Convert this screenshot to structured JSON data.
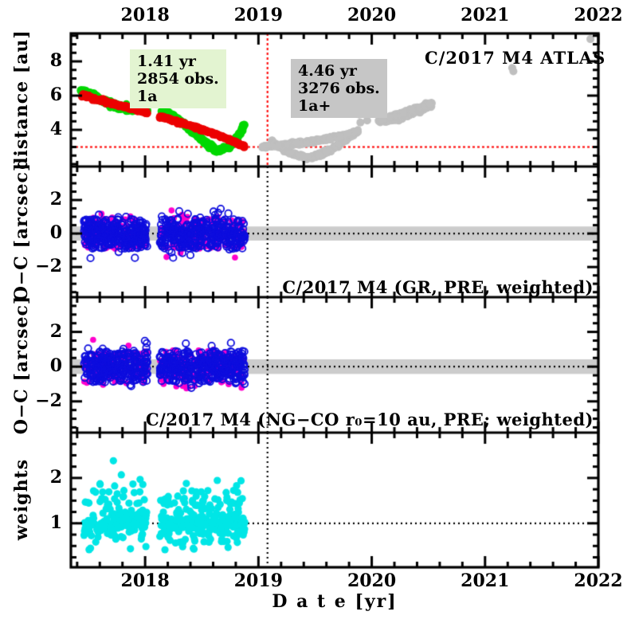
{
  "figure_title": "C/2017 M4 ATLAS",
  "chart_data": {
    "type": "scatter",
    "x": {
      "label": "D a t e [yr]",
      "min": 2017.345,
      "max": 2022.0,
      "major_ticks": [
        2018,
        2019,
        2020,
        2021,
        2022
      ],
      "tick_labels": [
        "2018",
        "2019",
        "2020",
        "2021",
        "2022"
      ],
      "minor_step": 0.2
    },
    "vline_x": 2019.08,
    "panels": [
      {
        "name": "distance",
        "ylabel": "distance [au]",
        "ylim": [
          1.86,
          9.63
        ],
        "yticks": {
          "major": [
            4,
            6,
            8
          ],
          "labels": [
            "4",
            "6",
            "8"
          ],
          "minor_step": 0.5
        },
        "hline": {
          "y": 3.0,
          "color": "#ff1212",
          "dash": [
            3,
            3
          ]
        },
        "vline": {
          "x": 2019.08,
          "color": "#ff1212",
          "dash": [
            3,
            3
          ]
        },
        "title": "C/2017 M4 ATLAS",
        "annotations": {
          "prefit": {
            "lines": [
              "1.41 yr",
              "2854 obs.",
              "1a"
            ],
            "bg": "#e3f4d1"
          },
          "postfit": {
            "lines": [
              "4.46 yr",
              "3276 obs.",
              "1a+"
            ],
            "bg": "#c6c6c6"
          }
        },
        "series": [
          {
            "id": "geocentric-distance-observed",
            "kind": "curve-dots",
            "color": "#00d800",
            "r": 5.0,
            "n": 430,
            "jitter": 0.07,
            "seed": 5,
            "gaps": [
              [
                2018.02,
                2018.13
              ]
            ],
            "points": [
              [
                2017.43,
                6.35
              ],
              [
                2017.55,
                5.95
              ],
              [
                2017.7,
                5.45
              ],
              [
                2017.85,
                5.24
              ],
              [
                2018.0,
                5.18
              ],
              [
                2018.12,
                5.12
              ],
              [
                2018.25,
                4.78
              ],
              [
                2018.4,
                4.05
              ],
              [
                2018.55,
                3.15
              ],
              [
                2018.64,
                2.78
              ],
              [
                2018.74,
                3.0
              ],
              [
                2018.82,
                3.62
              ],
              [
                2018.88,
                4.3
              ]
            ]
          },
          {
            "id": "heliocentric-distance-observed",
            "kind": "curve-dots",
            "color": "#ec0000",
            "r": 4.6,
            "n": 470,
            "jitter": 0.04,
            "seed": 6,
            "gaps": [
              [
                2018.02,
                2018.13
              ]
            ],
            "points": [
              [
                2017.43,
                6.05
              ],
              [
                2017.7,
                5.55
              ],
              [
                2018.0,
                5.05
              ],
              [
                2018.35,
                4.35
              ],
              [
                2018.6,
                3.8
              ],
              [
                2018.88,
                3.05
              ]
            ]
          },
          {
            "id": "geocentric-distance-recovery",
            "kind": "curve-dots",
            "color": "#bfbfbf",
            "r": 4.6,
            "n": 270,
            "jitter": 0.05,
            "seed": 7,
            "gaps": [],
            "points": [
              [
                2019.12,
                3.3
              ],
              [
                2019.3,
                2.6
              ],
              [
                2019.45,
                2.35
              ],
              [
                2019.6,
                2.7
              ],
              [
                2019.75,
                3.3
              ],
              [
                2019.88,
                3.95
              ]
            ]
          },
          {
            "id": "heliocentric-distance-recovery",
            "kind": "curve-dots",
            "color": "#bfbfbf",
            "r": 4.6,
            "n": 270,
            "jitter": 0.05,
            "seed": 8,
            "gaps": [],
            "points": [
              [
                2019.03,
                3.0
              ],
              [
                2019.2,
                3.12
              ],
              [
                2019.45,
                3.3
              ],
              [
                2019.7,
                3.6
              ],
              [
                2019.88,
                3.88
              ]
            ]
          },
          {
            "id": "distance-2020-track-a",
            "kind": "curve-dots",
            "color": "#bfbfbf",
            "r": 4.6,
            "n": 170,
            "jitter": 0.06,
            "seed": 9,
            "gaps": [],
            "points": [
              [
                2020.06,
                4.42
              ],
              [
                2020.25,
                4.72
              ],
              [
                2020.42,
                5.15
              ],
              [
                2020.53,
                5.45
              ]
            ]
          },
          {
            "id": "distance-2020-track-b",
            "kind": "curve-dots",
            "color": "#bfbfbf",
            "r": 4.6,
            "n": 150,
            "jitter": 0.05,
            "seed": 10,
            "gaps": [],
            "points": [
              [
                2020.06,
                4.58
              ],
              [
                2020.25,
                4.92
              ],
              [
                2020.42,
                5.32
              ],
              [
                2020.53,
                5.55
              ]
            ]
          },
          {
            "id": "distance-sparse-points",
            "kind": "points",
            "color": "#bfbfbf",
            "r": 5.0,
            "points": [
              [
                2019.89,
                4.9
              ],
              [
                2019.95,
                4.87
              ],
              [
                2019.9,
                4.43
              ],
              [
                2019.96,
                4.55
              ],
              [
                2021.24,
                7.62
              ],
              [
                2021.25,
                7.42
              ],
              [
                2021.93,
                9.3
              ]
            ]
          }
        ]
      },
      {
        "name": "oc-gr",
        "ylabel": "O−C [arcsec]",
        "ylim": [
          -3.8,
          4.0
        ],
        "yticks": {
          "major": [
            -2,
            0,
            2
          ],
          "labels": [
            "−2",
            "0",
            "2"
          ],
          "minor_step": 0.5
        },
        "band": {
          "y0": -0.42,
          "y1": 0.42,
          "color": "#cccccc"
        },
        "hline": {
          "y": 0,
          "color": "#000000",
          "dash": [
            2,
            4
          ]
        },
        "vline": {
          "x": 2019.08,
          "color": "#000000",
          "dash": [
            2,
            4
          ]
        },
        "label": "C/2017 M4 (GR, PRE, weighted)",
        "series": [
          {
            "id": "residuals-unselected",
            "kind": "scatter-gauss",
            "color": "#ff00cc",
            "marker": "fill",
            "r": 3.8,
            "n": 235,
            "seed": 11,
            "seasons": [
              [
                2017.46,
                2018.02
              ],
              [
                2018.13,
                2018.88
              ]
            ],
            "sd": 0.6,
            "flat": 0.95,
            "flat_frac": 0.5,
            "clip": 1.65
          },
          {
            "id": "residuals-selected",
            "kind": "scatter-gauss",
            "color": "#0d0dde",
            "marker": "open",
            "r": 4.2,
            "n": 640,
            "seed": 12,
            "seasons": [
              [
                2017.46,
                2018.02
              ],
              [
                2018.13,
                2018.88
              ]
            ],
            "sd": 0.5,
            "flat": 0.9,
            "flat_frac": 0.55,
            "clip": 1.55
          }
        ]
      },
      {
        "name": "oc-ngco",
        "ylabel": "O−C [arcsec]",
        "ylim": [
          -3.8,
          4.0
        ],
        "yticks": {
          "major": [
            -2,
            0,
            2
          ],
          "labels": [
            "−2",
            "0",
            "2"
          ],
          "minor_step": 0.5
        },
        "band": {
          "y0": -0.42,
          "y1": 0.42,
          "color": "#cccccc"
        },
        "hline": {
          "y": 0,
          "color": "#000000",
          "dash": [
            2,
            4
          ]
        },
        "vline": {
          "x": 2019.08,
          "color": "#000000",
          "dash": [
            2,
            4
          ]
        },
        "label": "C/2017 M4 (NG−CO r₀=10 au, PRE; weighted)",
        "series": [
          {
            "id": "residuals-unselected",
            "kind": "scatter-gauss",
            "color": "#ff00cc",
            "marker": "fill",
            "r": 3.8,
            "n": 235,
            "seed": 21,
            "seasons": [
              [
                2017.46,
                2018.02
              ],
              [
                2018.13,
                2018.88
              ]
            ],
            "sd": 0.6,
            "flat": 0.95,
            "flat_frac": 0.5,
            "clip": 1.65
          },
          {
            "id": "residuals-selected",
            "kind": "scatter-gauss",
            "color": "#0d0dde",
            "marker": "open",
            "r": 4.2,
            "n": 640,
            "seed": 22,
            "seasons": [
              [
                2017.46,
                2018.02
              ],
              [
                2018.13,
                2018.88
              ]
            ],
            "sd": 0.5,
            "flat": 0.9,
            "flat_frac": 0.55,
            "clip": 1.55
          }
        ]
      },
      {
        "name": "weights",
        "ylabel": "weights",
        "ylim": [
          0.03,
          3.0
        ],
        "yticks": {
          "major": [
            1,
            2
          ],
          "labels": [
            "1",
            "2"
          ],
          "minor_step": 0.25
        },
        "hline": {
          "y": 1,
          "color": "#000000",
          "dash": [
            2,
            4
          ]
        },
        "vline": {
          "x": 2019.08,
          "color": "#000000",
          "dash": [
            2,
            4
          ]
        },
        "series": [
          {
            "id": "observation-weights",
            "kind": "scatter-levels",
            "color": "#00e6e6",
            "r": 4.6,
            "n": 430,
            "seed": 31,
            "seasons": [
              [
                2017.46,
                2018.02
              ],
              [
                2018.13,
                2018.88
              ]
            ],
            "jitter": 0.03,
            "levels": [
              [
                1.0,
                0.28
              ],
              [
                1.1,
                0.12
              ],
              [
                0.9,
                0.12
              ],
              [
                0.8,
                0.1
              ],
              [
                0.7,
                0.05
              ],
              [
                1.2,
                0.08
              ],
              [
                1.3,
                0.05
              ],
              [
                1.45,
                0.07
              ],
              [
                1.55,
                0.05
              ],
              [
                1.7,
                0.035
              ],
              [
                1.85,
                0.025
              ],
              [
                0.6,
                0.04
              ],
              [
                0.45,
                0.02
              ],
              [
                1.95,
                0.015
              ]
            ]
          },
          {
            "id": "weights-outliers",
            "kind": "points",
            "color": "#00e6e6",
            "r": 4.6,
            "points": [
              [
                2017.72,
                2.38
              ],
              [
                2017.79,
                2.07
              ]
            ]
          }
        ]
      }
    ]
  }
}
